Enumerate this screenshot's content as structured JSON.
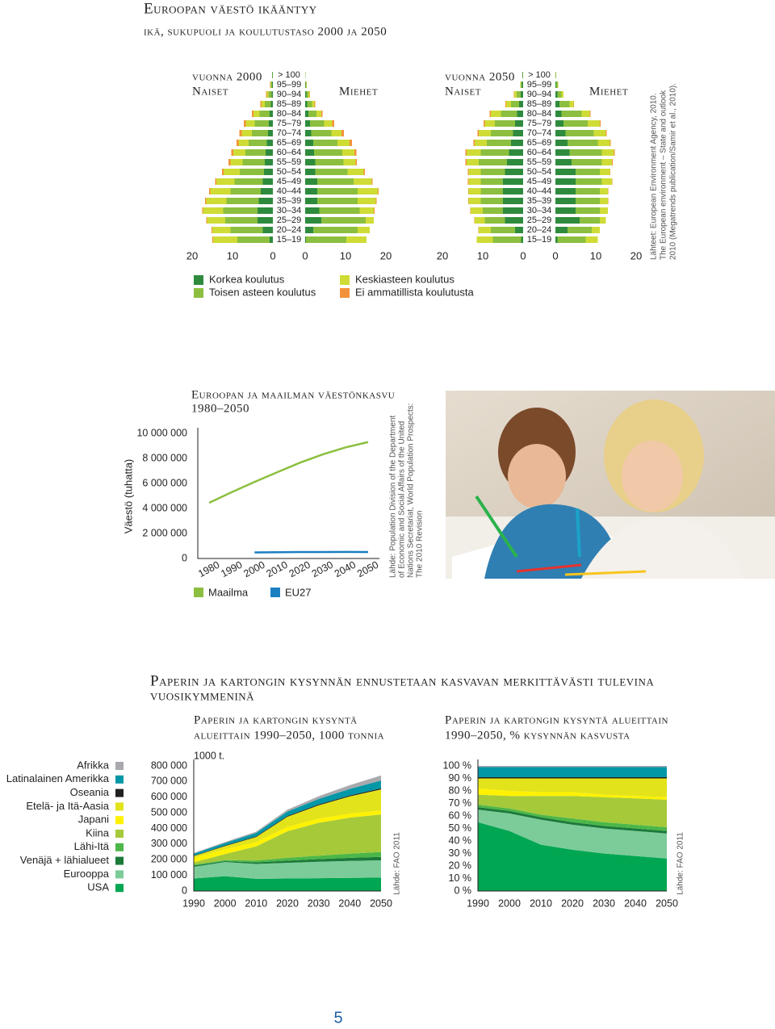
{
  "title": "Euroopan väestö ikääntyy",
  "subtitle": "ikä, sukupuoli ja koulutustaso 2000 ja 2050",
  "pyramid_source": [
    "Lähteet: European Environment Agency, 2010.",
    "The European environment – State and outlook",
    "2010 (Megatrends publication/Samir et al., 2010)."
  ],
  "section_heading": [
    "Paperin ja kartongin kysynnän ennustetaan kasvavan merkittävästi tulevina",
    "vuosikymmeninä"
  ],
  "page_number": "5",
  "chart_data": [
    {
      "type": "pyramid",
      "title": "vuonna 2000",
      "left_label": "Naiset",
      "right_label": "Miehet",
      "categories": [
        "> 100",
        "95–99",
        "90–94",
        "85–89",
        "80–84",
        "75–79",
        "70–74",
        "65–69",
        "60–64",
        "55–59",
        "50–54",
        "45–49",
        "40–44",
        "35–39",
        "30–34",
        "25–29",
        "20–24",
        "15–19"
      ],
      "xlim": [
        0,
        20
      ],
      "xticks": [
        0,
        10,
        20
      ],
      "series": [
        {
          "name": "Korkea koulutus",
          "color": "#2e8b3e",
          "women": [
            0.1,
            0.2,
            0.3,
            0.5,
            0.8,
            1.0,
            1.2,
            1.5,
            1.8,
            2,
            2.2,
            2.5,
            3,
            3.5,
            3.8,
            3.8,
            2.5,
            0.8
          ],
          "men": [
            0,
            0.1,
            0.3,
            0.5,
            0.8,
            1.2,
            1.5,
            2,
            2.2,
            2.5,
            2.5,
            3,
            3,
            3,
            3.5,
            4,
            2,
            0.2
          ]
        },
        {
          "name": "Toisen asteen koulutus",
          "color": "#8cbf3f",
          "women": [
            0.1,
            0.3,
            0.8,
            1.5,
            2.5,
            3.5,
            4,
            4.5,
            5,
            5.5,
            6,
            7,
            7.5,
            8,
            8.5,
            8,
            8,
            8
          ],
          "men": [
            0.1,
            0.2,
            0.5,
            1.2,
            2,
            3.5,
            5,
            6,
            7,
            7,
            8,
            9,
            10,
            10,
            10,
            11,
            11,
            10
          ]
        },
        {
          "name": "Keskiasteen koulutus",
          "color": "#cfdc36",
          "women": [
            0,
            0.1,
            0.4,
            0.8,
            1.5,
            2.2,
            2.5,
            2.5,
            3,
            3,
            4,
            4.5,
            5,
            5,
            5,
            4.5,
            4.5,
            6
          ],
          "men": [
            0,
            0.1,
            0.3,
            0.6,
            1.2,
            2,
            2.5,
            3,
            3,
            3,
            4,
            4.5,
            5,
            4.5,
            3.5,
            2,
            3,
            5
          ]
        },
        {
          "name": "Ei ammatillista koulutusta",
          "color": "#f3923a",
          "women": [
            0,
            0.1,
            0.2,
            0.3,
            0.4,
            0.5,
            0.6,
            0.5,
            0.5,
            0.5,
            0.4,
            0.3,
            0.3,
            0.3,
            0.2,
            0.2,
            0.2,
            0.2
          ],
          "men": [
            0,
            0,
            0.1,
            0.2,
            0.3,
            0.5,
            0.6,
            0.6,
            0.5,
            0.3,
            0.3,
            0.2,
            0.2,
            0.2,
            0.2,
            0,
            0,
            0
          ]
        }
      ]
    },
    {
      "type": "pyramid",
      "title": "vuonna 2050",
      "left_label": "Naiset",
      "right_label": "Miehet",
      "categories": [
        "> 100",
        "95–99",
        "90–94",
        "85–89",
        "80–84",
        "75–79",
        "70–74",
        "65–69",
        "60–64",
        "55–59",
        "50–54",
        "45–49",
        "40–44",
        "35–39",
        "30–34",
        "25–29",
        "20–24",
        "15–19"
      ],
      "xlim": [
        0,
        20
      ],
      "xticks": [
        0,
        10,
        20
      ],
      "series": [
        {
          "color": "#2e8b3e",
          "women": [
            0.1,
            0.3,
            0.6,
            1,
            1.5,
            2,
            2.5,
            3,
            3.5,
            4,
            4.5,
            5,
            5,
            5,
            5,
            4.5,
            2,
            0.5
          ],
          "men": [
            0,
            0.2,
            0.5,
            1,
            1.5,
            2,
            2.5,
            3,
            3.5,
            4,
            5,
            5,
            5,
            5,
            5,
            6,
            3,
            0.5
          ]
        },
        {
          "color": "#8cbf3f",
          "women": [
            0.1,
            0.3,
            1,
            2,
            4,
            5,
            5.5,
            6,
            7,
            7,
            6,
            5.5,
            5.5,
            5.5,
            5,
            5,
            6,
            7
          ],
          "men": [
            0.2,
            0.4,
            1,
            2.5,
            5,
            6,
            7,
            7.5,
            8,
            7.5,
            6,
            6.5,
            6,
            6,
            6,
            5,
            6,
            7
          ]
        },
        {
          "color": "#cfdc36",
          "women": [
            0,
            0.1,
            0.6,
            1.2,
            2.5,
            2.5,
            3,
            3,
            3.5,
            3,
            3,
            3,
            3,
            3,
            3,
            2.5,
            3,
            4
          ],
          "men": [
            0,
            0.1,
            0.5,
            1,
            2,
            3,
            3,
            3,
            3,
            2.5,
            2.5,
            2.5,
            2,
            2,
            2,
            1.5,
            2,
            3
          ]
        },
        {
          "color": "#f3923a",
          "women": [
            0,
            0,
            0.1,
            0.2,
            0.3,
            0.3,
            0.3,
            0.3,
            0.3,
            0.3,
            0.2,
            0.2,
            0.1,
            0.1,
            0.1,
            0.1,
            0.1,
            0
          ],
          "men": [
            0,
            0,
            0,
            0.1,
            0.2,
            0.2,
            0.2,
            0.2,
            0.2,
            0.2,
            0.1,
            0.1,
            0.1,
            0.1,
            0,
            0,
            0,
            0
          ]
        }
      ]
    },
    {
      "type": "line",
      "title": [
        "Euroopan ja maailman väestönkasvu",
        "1980–2050"
      ],
      "y_label": "Väestö (tuhatta)",
      "source": [
        "Lähde: Population Division of the Department",
        "of Economic and Social Affairs of the United",
        "Nations Secretariat, World Population Prospects:",
        "The 2010 Revision"
      ],
      "x": [
        1980,
        1990,
        2000,
        2010,
        2020,
        2030,
        2040,
        2050
      ],
      "xlim": [
        1975,
        2055
      ],
      "xticks": [
        1980,
        1990,
        2000,
        2010,
        2020,
        2030,
        2040,
        2050
      ],
      "ylim": [
        0,
        10000000
      ],
      "yticks": [
        0,
        {
          "value": 2000000,
          "label": "2 000 000"
        },
        {
          "value": 4000000,
          "label": "4 000 000"
        },
        {
          "value": 6000000,
          "label": "6 000 000"
        },
        {
          "value": 8000000,
          "label": "8 000 000"
        },
        {
          "value": 10000000,
          "label": "10 000 000"
        }
      ],
      "series": [
        {
          "name": "Maailma",
          "color": "#8cbf3f",
          "values": [
            4453000,
            5306000,
            6123000,
            6896000,
            7657000,
            8321000,
            8874000,
            9306000
          ]
        },
        {
          "name": "EU27",
          "color": "#1a7fc1",
          "values": [
            null,
            null,
            483000,
            501000,
            513000,
            520000,
            522000,
            516000
          ]
        }
      ]
    },
    {
      "type": "stacked_area",
      "title": [
        "Paperin ja kartongin kysyntä",
        "alueittain 1990–2050, 1000 tonnia"
      ],
      "unit_label": "1000 t.",
      "source": "Lähde: FAO 2011",
      "x": [
        1990,
        2000,
        2010,
        2020,
        2030,
        2040,
        2050
      ],
      "xlim": [
        1990,
        2050
      ],
      "xticks": [
        1990,
        2000,
        2010,
        2020,
        2030,
        2040,
        2050
      ],
      "ylim": [
        0,
        800000
      ],
      "yticks": [
        0,
        {
          "value": 100000,
          "label": "100 000"
        },
        {
          "value": 200000,
          "label": "200 000"
        },
        {
          "value": 300000,
          "label": "300 000"
        },
        {
          "value": 400000,
          "label": "400 000"
        },
        {
          "value": 500000,
          "label": "500 000"
        },
        {
          "value": 600000,
          "label": "600 000"
        },
        {
          "value": 700000,
          "label": "700 000"
        },
        {
          "value": 800000,
          "label": "800 000"
        }
      ],
      "series": [
        {
          "name": "Afrikka",
          "color": "#a7a9ac",
          "values": [
            5000,
            6000,
            8000,
            12000,
            17000,
            24000,
            32000
          ]
        },
        {
          "name": "Latinalainen Amerikka",
          "color": "#0097a7",
          "values": [
            12000,
            16000,
            22000,
            28000,
            35000,
            42000,
            50000
          ]
        },
        {
          "name": "Oseania",
          "color": "#231f20",
          "values": [
            3000,
            4000,
            4500,
            5000,
            5500,
            6000,
            6500
          ]
        },
        {
          "name": "Etelä- ja Itä-Aasia",
          "color": "#e3e31b",
          "values": [
            12000,
            20000,
            32000,
            65000,
            85000,
            110000,
            135000
          ]
        },
        {
          "name": "Japani",
          "color": "#fff200",
          "values": [
            28000,
            31000,
            28000,
            28000,
            27000,
            26000,
            25000
          ]
        },
        {
          "name": "Kiina",
          "color": "#a6c93a",
          "values": [
            15000,
            38000,
            90000,
            170000,
            210000,
            230000,
            240000
          ]
        },
        {
          "name": "Lähi-Itä",
          "color": "#4cb748",
          "values": [
            5000,
            7000,
            12000,
            18000,
            22000,
            27000,
            32000
          ]
        },
        {
          "name": "Venäjä + lähialueet",
          "color": "#1b7a3a",
          "values": [
            8000,
            6000,
            10000,
            14000,
            17000,
            20000,
            22000
          ]
        },
        {
          "name": "Eurooppa",
          "color": "#7ccc9a",
          "values": [
            75000,
            90000,
            95000,
            100000,
            105000,
            108000,
            110000
          ]
        },
        {
          "name": "USA",
          "color": "#00a651",
          "values": [
            80000,
            95000,
            78000,
            80000,
            82000,
            84000,
            86000
          ]
        }
      ]
    },
    {
      "type": "stacked_area",
      "title": [
        "Paperin ja kartongin kysyntä alueittain",
        "1990–2050, % kysynnän kasvusta"
      ],
      "source": "Lähde: FAO 2011",
      "x": [
        1990,
        2000,
        2010,
        2020,
        2030,
        2040,
        2050
      ],
      "xlim": [
        1990,
        2050
      ],
      "xticks": [
        1990,
        2000,
        2010,
        2020,
        2030,
        2040,
        2050
      ],
      "ylim": [
        0,
        100
      ],
      "yticks": [
        {
          "value": 0,
          "label": "0 %"
        },
        {
          "value": 10,
          "label": "10 %"
        },
        {
          "value": 20,
          "label": "20 %"
        },
        {
          "value": 30,
          "label": "30 %"
        },
        {
          "value": 40,
          "label": "40 %"
        },
        {
          "value": 50,
          "label": "50 %"
        },
        {
          "value": 60,
          "label": "60 %"
        },
        {
          "value": 70,
          "label": "70 %"
        },
        {
          "value": 80,
          "label": "80 %"
        },
        {
          "value": 90,
          "label": "90 %"
        },
        {
          "value": 100,
          "label": "100 %"
        }
      ],
      "series": [
        {
          "color": "#a7a9ac",
          "values": [
            1,
            1,
            1,
            1,
            1,
            1,
            1
          ]
        },
        {
          "color": "#0097a7",
          "values": [
            8,
            8,
            8,
            8,
            8,
            8,
            8
          ]
        },
        {
          "color": "#231f20",
          "values": [
            1,
            1,
            1,
            1,
            1,
            1,
            1
          ]
        },
        {
          "color": "#e3e31b",
          "values": [
            8,
            10,
            11,
            11,
            13,
            14,
            15
          ]
        },
        {
          "color": "#fff200",
          "values": [
            5,
            4,
            3,
            3,
            2,
            2,
            2
          ]
        },
        {
          "color": "#a6c93a",
          "values": [
            8,
            10,
            15,
            18,
            20,
            21,
            22
          ]
        },
        {
          "color": "#4cb748",
          "values": [
            2,
            2,
            2,
            3,
            3,
            3,
            3
          ]
        },
        {
          "color": "#1b7a3a",
          "values": [
            2,
            2,
            2,
            2,
            2,
            2,
            2
          ]
        },
        {
          "color": "#7ccc9a",
          "values": [
            10,
            14,
            20,
            20,
            20,
            20,
            20
          ]
        },
        {
          "color": "#00a651",
          "values": [
            55,
            48,
            37,
            33,
            30,
            28,
            26
          ]
        }
      ]
    }
  ]
}
